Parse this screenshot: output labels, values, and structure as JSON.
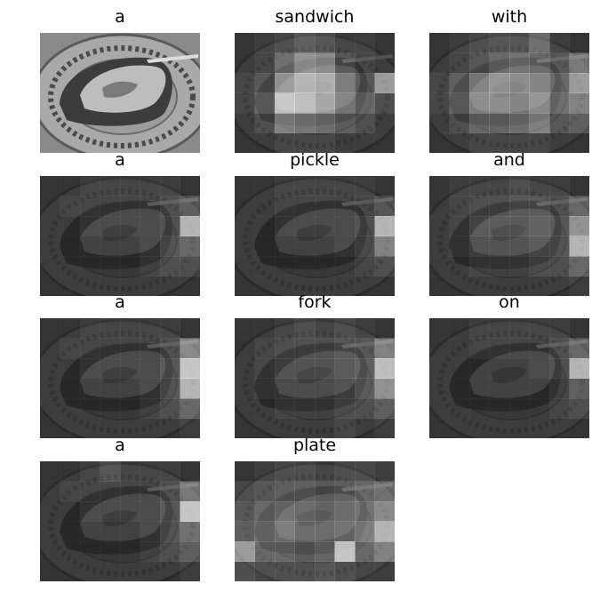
{
  "panels": [
    {
      "word": "a",
      "attention": [
        [
          0,
          0,
          0,
          0,
          0,
          0,
          0,
          0
        ],
        [
          0,
          0,
          0,
          0,
          0,
          0,
          0,
          0
        ],
        [
          0,
          0,
          0,
          0,
          0,
          0,
          0,
          0
        ],
        [
          0,
          0,
          0,
          0,
          0,
          0,
          0,
          0
        ],
        [
          0,
          0,
          0,
          0,
          0,
          0,
          0,
          0
        ],
        [
          0,
          0,
          0,
          0,
          0,
          0,
          0,
          0
        ]
      ],
      "original": true
    },
    {
      "word": "sandwich",
      "attention": [
        [
          0.05,
          0.1,
          0.15,
          0.25,
          0.2,
          0.1,
          0.1,
          0.05
        ],
        [
          0.05,
          0.1,
          0.35,
          0.55,
          0.5,
          0.2,
          0.1,
          0.05
        ],
        [
          0.1,
          0.2,
          0.6,
          0.75,
          0.7,
          0.4,
          0.2,
          0.6
        ],
        [
          0.1,
          0.3,
          0.85,
          0.8,
          0.65,
          0.45,
          0.3,
          0.15
        ],
        [
          0.05,
          0.15,
          0.45,
          0.4,
          0.35,
          0.25,
          0.15,
          0.05
        ],
        [
          0.05,
          0.05,
          0.1,
          0.1,
          0.1,
          0.05,
          0.05,
          0.05
        ]
      ]
    },
    {
      "word": "with",
      "attention": [
        [
          0.05,
          0.1,
          0.15,
          0.2,
          0.2,
          0.35,
          0.1,
          0.05
        ],
        [
          0.05,
          0.1,
          0.2,
          0.3,
          0.35,
          0.3,
          0.2,
          0.4
        ],
        [
          0.1,
          0.25,
          0.45,
          0.55,
          0.5,
          0.45,
          0.3,
          0.6
        ],
        [
          0.1,
          0.3,
          0.5,
          0.5,
          0.45,
          0.55,
          0.35,
          0.45
        ],
        [
          0.05,
          0.15,
          0.3,
          0.3,
          0.35,
          0.45,
          0.2,
          0.25
        ],
        [
          0.05,
          0.05,
          0.1,
          0.1,
          0.1,
          0.1,
          0.05,
          0.05
        ]
      ]
    },
    {
      "word": "a",
      "attention": [
        [
          0.05,
          0.05,
          0.1,
          0.1,
          0.1,
          0.1,
          0.1,
          0.05
        ],
        [
          0.05,
          0.1,
          0.1,
          0.1,
          0.1,
          0.1,
          0.15,
          0.25
        ],
        [
          0.05,
          0.05,
          0.1,
          0.1,
          0.1,
          0.1,
          0.15,
          0.75
        ],
        [
          0.05,
          0.05,
          0.05,
          0.05,
          0.05,
          0.1,
          0.2,
          0.3
        ],
        [
          0.05,
          0.05,
          0.05,
          0.05,
          0.05,
          0.1,
          0.15,
          0.15
        ],
        [
          0.05,
          0.05,
          0.05,
          0.05,
          0.05,
          0.05,
          0.05,
          0.05
        ]
      ]
    },
    {
      "word": "pickle",
      "attention": [
        [
          0.05,
          0.05,
          0.1,
          0.1,
          0.1,
          0.1,
          0.1,
          0.05
        ],
        [
          0.05,
          0.05,
          0.1,
          0.1,
          0.1,
          0.1,
          0.1,
          0.2
        ],
        [
          0.05,
          0.05,
          0.1,
          0.1,
          0.1,
          0.1,
          0.15,
          0.75
        ],
        [
          0.05,
          0.05,
          0.05,
          0.05,
          0.05,
          0.1,
          0.15,
          0.45
        ],
        [
          0.05,
          0.05,
          0.05,
          0.05,
          0.05,
          0.05,
          0.1,
          0.15
        ],
        [
          0.05,
          0.05,
          0.05,
          0.05,
          0.05,
          0.05,
          0.05,
          0.05
        ]
      ]
    },
    {
      "word": "and",
      "attention": [
        [
          0.05,
          0.1,
          0.1,
          0.1,
          0.15,
          0.1,
          0.1,
          0.05
        ],
        [
          0.05,
          0.1,
          0.15,
          0.15,
          0.2,
          0.2,
          0.15,
          0.3
        ],
        [
          0.05,
          0.1,
          0.2,
          0.2,
          0.2,
          0.25,
          0.2,
          0.55
        ],
        [
          0.05,
          0.1,
          0.15,
          0.15,
          0.15,
          0.2,
          0.2,
          0.75
        ],
        [
          0.05,
          0.05,
          0.1,
          0.1,
          0.1,
          0.15,
          0.15,
          0.3
        ],
        [
          0.05,
          0.05,
          0.05,
          0.05,
          0.05,
          0.05,
          0.05,
          0.1
        ]
      ]
    },
    {
      "word": "a",
      "attention": [
        [
          0.05,
          0.05,
          0.1,
          0.1,
          0.1,
          0.1,
          0.1,
          0.05
        ],
        [
          0.05,
          0.1,
          0.1,
          0.1,
          0.1,
          0.1,
          0.15,
          0.5
        ],
        [
          0.05,
          0.05,
          0.1,
          0.1,
          0.1,
          0.1,
          0.2,
          0.85
        ],
        [
          0.05,
          0.05,
          0.05,
          0.05,
          0.05,
          0.1,
          0.2,
          0.75
        ],
        [
          0.05,
          0.05,
          0.05,
          0.05,
          0.05,
          0.1,
          0.15,
          0.3
        ],
        [
          0.05,
          0.05,
          0.05,
          0.05,
          0.05,
          0.05,
          0.05,
          0.1
        ]
      ]
    },
    {
      "word": "fork",
      "attention": [
        [
          0.05,
          0.05,
          0.1,
          0.15,
          0.1,
          0.15,
          0.1,
          0.05
        ],
        [
          0.05,
          0.1,
          0.15,
          0.15,
          0.15,
          0.2,
          0.2,
          0.45
        ],
        [
          0.05,
          0.1,
          0.15,
          0.15,
          0.15,
          0.2,
          0.25,
          0.8
        ],
        [
          0.05,
          0.1,
          0.1,
          0.1,
          0.1,
          0.15,
          0.25,
          0.55
        ],
        [
          0.05,
          0.05,
          0.1,
          0.1,
          0.1,
          0.15,
          0.15,
          0.25
        ],
        [
          0.05,
          0.05,
          0.05,
          0.05,
          0.05,
          0.1,
          0.05,
          0.1
        ]
      ]
    },
    {
      "word": "on",
      "attention": [
        [
          0.05,
          0.05,
          0.1,
          0.1,
          0.1,
          0.1,
          0.1,
          0.05
        ],
        [
          0.05,
          0.05,
          0.1,
          0.1,
          0.1,
          0.1,
          0.15,
          0.3
        ],
        [
          0.05,
          0.05,
          0.05,
          0.05,
          0.05,
          0.1,
          0.15,
          0.75
        ],
        [
          0.05,
          0.05,
          0.05,
          0.05,
          0.05,
          0.05,
          0.1,
          0.25
        ],
        [
          0.05,
          0.05,
          0.05,
          0.05,
          0.05,
          0.05,
          0.1,
          0.15
        ],
        [
          0.05,
          0.05,
          0.05,
          0.05,
          0.05,
          0.05,
          0.05,
          0.05
        ]
      ]
    },
    {
      "word": "a",
      "attention": [
        [
          0.05,
          0.05,
          0.1,
          0.2,
          0.1,
          0.1,
          0.1,
          0.05
        ],
        [
          0.05,
          0.1,
          0.1,
          0.1,
          0.1,
          0.1,
          0.15,
          0.4
        ],
        [
          0.05,
          0.05,
          0.1,
          0.1,
          0.1,
          0.1,
          0.2,
          0.85
        ],
        [
          0.05,
          0.05,
          0.05,
          0.05,
          0.05,
          0.1,
          0.2,
          0.35
        ],
        [
          0.05,
          0.05,
          0.05,
          0.05,
          0.05,
          0.1,
          0.15,
          0.25
        ],
        [
          0.05,
          0.05,
          0.05,
          0.05,
          0.05,
          0.05,
          0.05,
          0.1
        ]
      ]
    },
    {
      "word": "plate",
      "attention": [
        [
          0.05,
          0.1,
          0.15,
          0.15,
          0.1,
          0.15,
          0.15,
          0.1
        ],
        [
          0.15,
          0.2,
          0.25,
          0.25,
          0.2,
          0.25,
          0.3,
          0.35
        ],
        [
          0.2,
          0.3,
          0.35,
          0.3,
          0.25,
          0.3,
          0.35,
          0.5
        ],
        [
          0.25,
          0.35,
          0.4,
          0.3,
          0.3,
          0.35,
          0.45,
          0.75
        ],
        [
          0.6,
          0.3,
          0.3,
          0.25,
          0.3,
          0.85,
          0.3,
          0.45
        ],
        [
          0.2,
          0.15,
          0.15,
          0.15,
          0.2,
          0.15,
          0.1,
          0.1
        ]
      ]
    }
  ]
}
